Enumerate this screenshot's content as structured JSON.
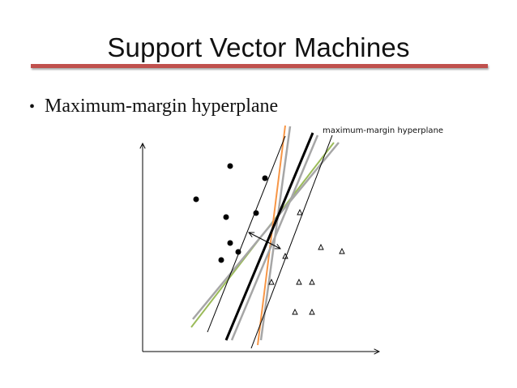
{
  "slide": {
    "title": "Support Vector Machines",
    "bullet": "Maximum-margin hyperplane"
  },
  "diagram": {
    "annotation": "maximum-margin hyperplane",
    "colors": {
      "title_rule": "#c0504d",
      "max_margin_line": "#000000",
      "margin_lines": "#000000",
      "alt_orange": "#f79646",
      "alt_green": "#9bbb59",
      "alt_gray": "#a6a6a6"
    },
    "class_markers": [
      "filled-circle",
      "hollow-triangle"
    ]
  }
}
